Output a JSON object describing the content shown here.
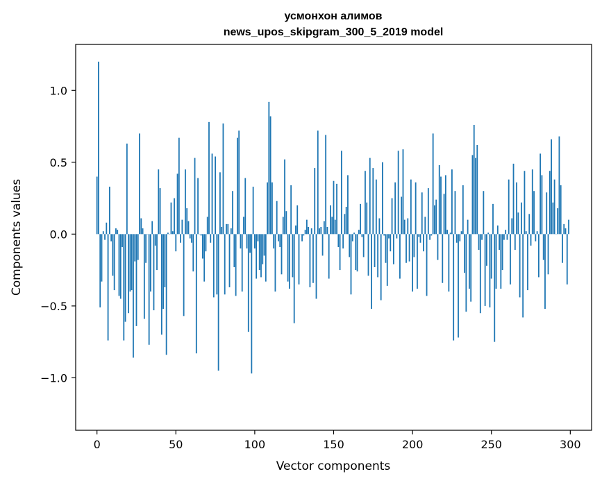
{
  "chart_data": {
    "type": "bar",
    "title": "усмонхон алимов",
    "subtitle": "news_upos_skipgram_300_5_2019 model",
    "xlabel": "Vector components",
    "ylabel": "Components values",
    "xlim": [
      -13.5,
      313.5
    ],
    "ylim": [
      -1.365,
      1.32
    ],
    "xticks": [
      0,
      50,
      100,
      150,
      200,
      250,
      300
    ],
    "yticks": [
      -1.0,
      -0.5,
      0.0,
      0.5,
      1.0
    ],
    "ytick_labels": [
      "−1.0",
      "−0.5",
      "0.0",
      "0.5",
      "1.0"
    ],
    "bar_color": "#1f77b4",
    "x": "0..299 (component index)",
    "values": [
      0.4,
      1.2,
      -0.51,
      -0.33,
      0.02,
      -0.04,
      0.08,
      -0.74,
      0.33,
      -0.05,
      -0.29,
      -0.39,
      0.04,
      0.03,
      -0.43,
      -0.45,
      -0.09,
      -0.74,
      -0.61,
      0.63,
      -0.55,
      -0.4,
      -0.39,
      -0.86,
      -0.19,
      -0.64,
      -0.18,
      0.7,
      0.11,
      0.04,
      -0.59,
      -0.2,
      0.0,
      -0.77,
      -0.4,
      0.09,
      -0.53,
      -0.08,
      -0.25,
      0.45,
      0.32,
      -0.7,
      -0.52,
      -0.37,
      -0.84,
      0.01,
      0.0,
      0.22,
      0.02,
      0.25,
      -0.12,
      0.42,
      0.67,
      -0.06,
      0.1,
      -0.57,
      0.45,
      0.18,
      0.09,
      -0.03,
      -0.06,
      -0.26,
      0.53,
      -0.83,
      0.39,
      0.0,
      -0.01,
      -0.17,
      -0.33,
      -0.12,
      0.12,
      0.78,
      -0.06,
      0.56,
      -0.44,
      0.54,
      -0.42,
      -0.95,
      0.43,
      0.05,
      0.77,
      -0.42,
      0.07,
      0.07,
      -0.37,
      0.04,
      0.3,
      -0.23,
      -0.43,
      0.67,
      0.72,
      -0.1,
      -0.4,
      0.12,
      0.39,
      -0.1,
      -0.68,
      -0.13,
      -0.97,
      0.33,
      -0.1,
      -0.31,
      -0.05,
      -0.25,
      -0.3,
      -0.21,
      -0.15,
      -0.33,
      0.36,
      0.92,
      0.82,
      0.36,
      -0.1,
      -0.4,
      0.23,
      -0.05,
      -0.09,
      -0.28,
      0.12,
      0.52,
      0.16,
      -0.33,
      -0.38,
      0.34,
      -0.3,
      -0.62,
      0.06,
      0.2,
      -0.35,
      0.0,
      -0.05,
      -0.01,
      0.03,
      0.1,
      0.05,
      -0.37,
      0.04,
      -0.34,
      0.46,
      -0.45,
      0.72,
      0.04,
      0.05,
      -0.15,
      0.09,
      0.69,
      0.05,
      -0.31,
      0.2,
      0.12,
      0.37,
      0.1,
      0.35,
      -0.09,
      -0.25,
      0.58,
      -0.1,
      0.14,
      0.19,
      0.41,
      -0.16,
      -0.42,
      -0.05,
      0.01,
      -0.25,
      -0.26,
      0.03,
      0.21,
      -0.02,
      -0.16,
      0.44,
      0.22,
      -0.29,
      0.53,
      -0.52,
      0.46,
      -0.23,
      0.38,
      -0.3,
      0.11,
      -0.46,
      0.5,
      -0.01,
      -0.2,
      -0.36,
      -0.03,
      -0.12,
      0.25,
      -0.21,
      0.36,
      -0.03,
      0.58,
      -0.31,
      0.26,
      0.59,
      0.1,
      -0.2,
      0.11,
      -0.19,
      0.38,
      -0.4,
      -0.16,
      0.36,
      -0.38,
      -0.02,
      -0.06,
      0.29,
      -0.12,
      0.12,
      -0.43,
      0.32,
      -0.04,
      -0.01,
      0.7,
      0.2,
      0.24,
      -0.18,
      0.48,
      0.4,
      -0.34,
      0.28,
      0.41,
      0.03,
      -0.4,
      0.01,
      0.45,
      -0.74,
      0.3,
      -0.06,
      -0.72,
      -0.05,
      0.02,
      0.34,
      -0.27,
      -0.54,
      0.1,
      -0.38,
      -0.47,
      0.55,
      0.76,
      0.53,
      0.62,
      -0.11,
      -0.55,
      -0.04,
      0.3,
      -0.5,
      -0.22,
      0.01,
      -0.51,
      -0.31,
      0.21,
      -0.75,
      -0.38,
      0.06,
      -0.11,
      -0.38,
      -0.25,
      -0.04,
      0.03,
      -0.04,
      0.38,
      -0.35,
      0.11,
      0.49,
      -0.11,
      0.36,
      0.15,
      -0.44,
      0.22,
      -0.58,
      0.44,
      0.02,
      -0.39,
      0.14,
      -0.08,
      0.45,
      0.3,
      -0.05,
      0.02,
      -0.3,
      0.56,
      0.41,
      -0.18,
      -0.52,
      0.29,
      -0.28,
      0.44,
      0.66,
      0.22,
      0.38,
      0.0,
      0.18,
      0.68,
      0.34,
      -0.2,
      0.07,
      0.04,
      -0.35,
      0.1
    ]
  }
}
